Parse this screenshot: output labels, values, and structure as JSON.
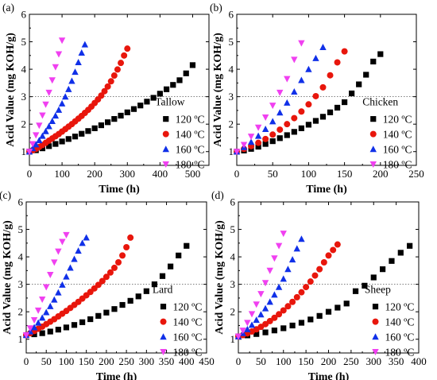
{
  "colors": {
    "s120": "#000000",
    "s140": "#e8160c",
    "s160": "#1030e8",
    "s180": "#f040f0",
    "threshold_line": "#555555"
  },
  "chart_data": [
    {
      "type": "scatter",
      "panel_label": "(a)",
      "annotation": "Tallow",
      "xlabel": "Time (h)",
      "ylabel": "Acid Value (mg KOH/g)",
      "xlim": [
        0,
        550
      ],
      "ylim": [
        0.5,
        6
      ],
      "xticks": [
        0,
        100,
        200,
        300,
        400,
        500
      ],
      "yticks": [
        1,
        2,
        3,
        4,
        5,
        6
      ],
      "reference_line_y": 3,
      "legend_position": "right",
      "series": [
        {
          "name": "120 ºC",
          "marker": "square",
          "color": "#000000",
          "x": [
            0,
            20,
            40,
            60,
            80,
            100,
            120,
            140,
            160,
            180,
            200,
            220,
            240,
            260,
            280,
            300,
            320,
            340,
            360,
            380,
            400,
            420,
            440,
            460,
            480,
            500
          ],
          "y": [
            1.0,
            1.05,
            1.12,
            1.2,
            1.28,
            1.37,
            1.46,
            1.55,
            1.65,
            1.75,
            1.85,
            1.96,
            2.07,
            2.19,
            2.31,
            2.43,
            2.55,
            2.68,
            2.82,
            2.96,
            3.11,
            3.27,
            3.43,
            3.6,
            3.85,
            4.15
          ]
        },
        {
          "name": "140 ºC",
          "marker": "circle",
          "color": "#e8160c",
          "x": [
            0,
            10,
            20,
            30,
            40,
            50,
            60,
            70,
            80,
            90,
            100,
            110,
            120,
            130,
            140,
            150,
            160,
            170,
            180,
            190,
            200,
            210,
            220,
            230,
            240,
            250,
            260,
            270,
            280,
            290,
            300
          ],
          "y": [
            1.0,
            1.05,
            1.1,
            1.17,
            1.24,
            1.32,
            1.4,
            1.48,
            1.56,
            1.64,
            1.73,
            1.82,
            1.91,
            2.0,
            2.1,
            2.2,
            2.3,
            2.41,
            2.52,
            2.64,
            2.77,
            2.9,
            3.04,
            3.2,
            3.37,
            3.56,
            3.77,
            3.99,
            4.23,
            4.5,
            4.75
          ]
        },
        {
          "name": "160 ºC",
          "marker": "triangle",
          "color": "#1030e8",
          "x": [
            0,
            10,
            20,
            30,
            40,
            50,
            60,
            70,
            80,
            90,
            100,
            110,
            120,
            130,
            140,
            150,
            160,
            170
          ],
          "y": [
            1.0,
            1.12,
            1.26,
            1.41,
            1.57,
            1.74,
            1.92,
            2.11,
            2.31,
            2.52,
            2.75,
            3.0,
            3.27,
            3.57,
            3.9,
            4.25,
            4.6,
            4.9
          ]
        },
        {
          "name": "180 ºC",
          "marker": "triangle-down",
          "color": "#f040f0",
          "x": [
            0,
            10,
            20,
            30,
            40,
            50,
            60,
            70,
            80,
            90,
            100
          ],
          "y": [
            1.0,
            1.28,
            1.6,
            1.95,
            2.32,
            2.72,
            3.15,
            3.6,
            4.08,
            4.55,
            5.05
          ]
        }
      ]
    },
    {
      "type": "scatter",
      "panel_label": "(b)",
      "annotation": "Chicken",
      "xlabel": "Time (h)",
      "ylabel": "Acid Value (mg KOH/g)",
      "xlim": [
        0,
        250
      ],
      "ylim": [
        0.5,
        6
      ],
      "xticks": [
        0,
        50,
        100,
        150,
        200,
        250
      ],
      "yticks": [
        1,
        2,
        3,
        4,
        5,
        6
      ],
      "reference_line_y": 3,
      "legend_position": "right",
      "series": [
        {
          "name": "120 ºC",
          "marker": "square",
          "color": "#000000",
          "x": [
            0,
            10,
            20,
            30,
            40,
            50,
            60,
            70,
            80,
            90,
            100,
            110,
            120,
            130,
            140,
            150,
            160,
            170,
            180,
            190,
            200
          ],
          "y": [
            1.0,
            1.04,
            1.1,
            1.18,
            1.28,
            1.38,
            1.49,
            1.6,
            1.72,
            1.85,
            1.98,
            2.12,
            2.27,
            2.43,
            2.6,
            2.8,
            3.12,
            3.45,
            3.8,
            4.28,
            4.55
          ]
        },
        {
          "name": "140 ºC",
          "marker": "circle",
          "color": "#e8160c",
          "x": [
            0,
            10,
            20,
            30,
            40,
            50,
            60,
            70,
            80,
            90,
            100,
            110,
            120,
            130,
            140,
            150
          ],
          "y": [
            1.0,
            1.1,
            1.2,
            1.32,
            1.46,
            1.62,
            1.8,
            2.0,
            2.22,
            2.46,
            2.72,
            3.02,
            3.34,
            3.78,
            4.25,
            4.65
          ]
        },
        {
          "name": "160 ºC",
          "marker": "triangle",
          "color": "#1030e8",
          "x": [
            0,
            10,
            20,
            30,
            40,
            50,
            60,
            70,
            80,
            90,
            100,
            110,
            120
          ],
          "y": [
            1.0,
            1.16,
            1.35,
            1.57,
            1.82,
            2.1,
            2.42,
            2.78,
            3.18,
            3.6,
            4.0,
            4.4,
            4.8
          ]
        },
        {
          "name": "180 ºC",
          "marker": "triangle-down",
          "color": "#f040f0",
          "x": [
            0,
            10,
            20,
            30,
            40,
            50,
            60,
            70,
            80,
            90
          ],
          "y": [
            1.0,
            1.25,
            1.55,
            1.88,
            2.25,
            2.68,
            3.15,
            3.65,
            4.35,
            4.95
          ]
        }
      ]
    },
    {
      "type": "scatter",
      "panel_label": "(c)",
      "annotation": "Lard",
      "xlabel": "Time (h)",
      "ylabel": "Acid Value (mg KOH/g)",
      "xlim": [
        0,
        450
      ],
      "ylim": [
        0.5,
        6
      ],
      "xticks": [
        0,
        50,
        100,
        150,
        200,
        250,
        300,
        350,
        400,
        450
      ],
      "yticks": [
        1,
        2,
        3,
        4,
        5,
        6
      ],
      "reference_line_y": 3,
      "legend_position": "right",
      "series": [
        {
          "name": "120 ºC",
          "marker": "square",
          "color": "#000000",
          "x": [
            0,
            20,
            40,
            60,
            80,
            100,
            120,
            140,
            160,
            180,
            200,
            220,
            240,
            260,
            280,
            300,
            320,
            340,
            360,
            380,
            400
          ],
          "y": [
            1.15,
            1.18,
            1.22,
            1.28,
            1.35,
            1.43,
            1.52,
            1.62,
            1.73,
            1.85,
            1.97,
            2.1,
            2.25,
            2.4,
            2.56,
            2.75,
            3.0,
            3.3,
            3.65,
            4.05,
            4.4
          ]
        },
        {
          "name": "140 ºC",
          "marker": "circle",
          "color": "#e8160c",
          "x": [
            0,
            10,
            20,
            30,
            40,
            50,
            60,
            70,
            80,
            90,
            100,
            110,
            120,
            130,
            140,
            150,
            160,
            170,
            180,
            190,
            200,
            210,
            220,
            230,
            240,
            250,
            260
          ],
          "y": [
            1.15,
            1.22,
            1.3,
            1.38,
            1.46,
            1.55,
            1.64,
            1.73,
            1.83,
            1.93,
            2.03,
            2.14,
            2.25,
            2.36,
            2.48,
            2.6,
            2.72,
            2.85,
            2.98,
            3.12,
            3.27,
            3.43,
            3.6,
            3.8,
            4.05,
            4.35,
            4.7
          ]
        },
        {
          "name": "160 ºC",
          "marker": "triangle",
          "color": "#1030e8",
          "x": [
            0,
            10,
            20,
            30,
            40,
            50,
            60,
            70,
            80,
            90,
            100,
            110,
            120,
            130,
            140,
            150
          ],
          "y": [
            1.15,
            1.28,
            1.43,
            1.6,
            1.78,
            1.98,
            2.2,
            2.44,
            2.7,
            2.98,
            3.28,
            3.6,
            3.92,
            4.22,
            4.5,
            4.7
          ]
        },
        {
          "name": "180 ºC",
          "marker": "triangle-down",
          "color": "#f040f0",
          "x": [
            0,
            10,
            20,
            30,
            40,
            50,
            60,
            70,
            80,
            90,
            100
          ],
          "y": [
            1.15,
            1.4,
            1.7,
            2.05,
            2.45,
            2.9,
            3.35,
            3.8,
            4.2,
            4.55,
            4.8
          ]
        }
      ]
    },
    {
      "type": "scatter",
      "panel_label": "(d)",
      "annotation": "Sheep",
      "xlabel": "Time (h)",
      "ylabel": "Acid Value (mg KOH/g)",
      "xlim": [
        0,
        400
      ],
      "ylim": [
        0.5,
        6
      ],
      "xticks": [
        0,
        50,
        100,
        150,
        200,
        250,
        300,
        350,
        400
      ],
      "yticks": [
        1,
        2,
        3,
        4,
        5,
        6
      ],
      "reference_line_y": 3,
      "legend_position": "right",
      "series": [
        {
          "name": "120 ºC",
          "marker": "square",
          "color": "#000000",
          "x": [
            0,
            20,
            40,
            60,
            80,
            100,
            120,
            140,
            160,
            180,
            200,
            220,
            240,
            260,
            280,
            300,
            320,
            340,
            360,
            380
          ],
          "y": [
            1.1,
            1.14,
            1.19,
            1.25,
            1.32,
            1.4,
            1.5,
            1.6,
            1.72,
            1.85,
            2.0,
            2.15,
            2.3,
            2.75,
            2.95,
            3.25,
            3.55,
            3.85,
            4.15,
            4.4
          ]
        },
        {
          "name": "140 ºC",
          "marker": "circle",
          "color": "#e8160c",
          "x": [
            0,
            10,
            20,
            30,
            40,
            50,
            60,
            70,
            80,
            90,
            100,
            110,
            120,
            130,
            140,
            150,
            160,
            170,
            180,
            190,
            200,
            210,
            220
          ],
          "y": [
            1.1,
            1.15,
            1.21,
            1.28,
            1.36,
            1.45,
            1.55,
            1.66,
            1.78,
            1.91,
            2.05,
            2.2,
            2.36,
            2.53,
            2.71,
            2.9,
            3.1,
            3.32,
            3.55,
            3.8,
            4.05,
            4.25,
            4.45
          ]
        },
        {
          "name": "160 ºC",
          "marker": "triangle",
          "color": "#1030e8",
          "x": [
            0,
            10,
            20,
            30,
            40,
            50,
            60,
            70,
            80,
            90,
            100,
            110,
            120,
            130,
            140
          ],
          "y": [
            1.1,
            1.22,
            1.36,
            1.52,
            1.7,
            1.9,
            2.12,
            2.36,
            2.62,
            2.9,
            3.2,
            3.55,
            3.9,
            4.3,
            4.65
          ]
        },
        {
          "name": "180 ºC",
          "marker": "triangle-down",
          "color": "#f040f0",
          "x": [
            0,
            10,
            20,
            30,
            40,
            50,
            60,
            70,
            80,
            90,
            100
          ],
          "y": [
            1.1,
            1.32,
            1.6,
            1.92,
            2.27,
            2.65,
            3.05,
            3.5,
            3.95,
            4.4,
            4.85
          ]
        }
      ]
    }
  ]
}
